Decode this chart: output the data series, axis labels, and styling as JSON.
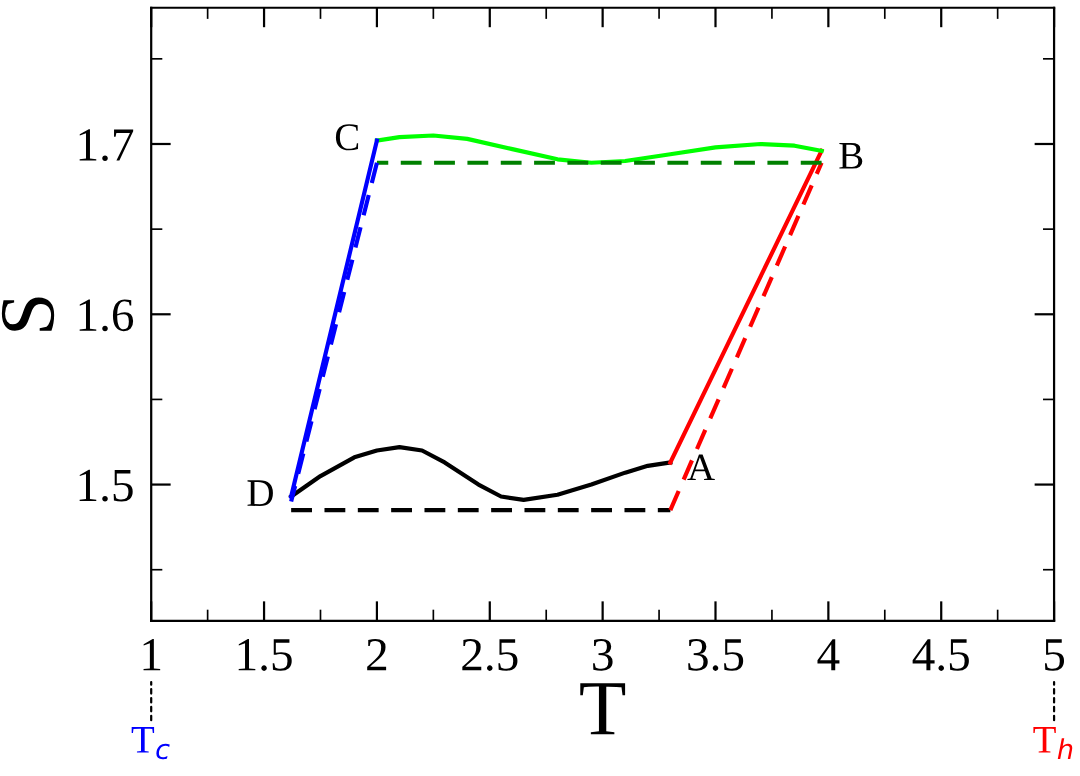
{
  "chart_data": {
    "type": "line",
    "xlabel": "T",
    "ylabel": "S",
    "xlim": [
      1,
      5
    ],
    "ylim": [
      1.42,
      1.78
    ],
    "xticks": [
      1,
      1.5,
      2,
      2.5,
      3,
      3.5,
      4,
      4.5,
      5
    ],
    "yticks": [
      1.5,
      1.6,
      1.7
    ],
    "grid": false,
    "legend": false,
    "marker": "none",
    "series": [
      {
        "color": "#000000",
        "line_style": "solid",
        "x": [
          1.62,
          1.75,
          1.9,
          2.0,
          2.1,
          2.2,
          2.3,
          2.45,
          2.55,
          2.65,
          2.8,
          2.95,
          3.1,
          3.2,
          3.3
        ],
        "values": [
          1.493,
          1.505,
          1.516,
          1.52,
          1.522,
          1.52,
          1.513,
          1.5,
          1.493,
          1.491,
          1.494,
          1.5,
          1.507,
          1.511,
          1.513
        ]
      },
      {
        "color": "#ff0000",
        "line_style": "solid",
        "x": [
          3.3,
          3.97
        ],
        "values": [
          1.513,
          1.696
        ]
      },
      {
        "color": "#00ff00",
        "line_style": "solid",
        "x": [
          2.0,
          2.1,
          2.25,
          2.4,
          2.6,
          2.8,
          2.95,
          3.1,
          3.3,
          3.5,
          3.7,
          3.85,
          3.97
        ],
        "values": [
          1.702,
          1.704,
          1.705,
          1.703,
          1.697,
          1.691,
          1.689,
          1.69,
          1.694,
          1.698,
          1.7,
          1.699,
          1.696
        ]
      },
      {
        "color": "#0000ff",
        "line_style": "solid",
        "x": [
          2.0,
          1.62
        ],
        "values": [
          1.702,
          1.493
        ]
      },
      {
        "color": "#000000",
        "line_style": "dashed",
        "x": [
          1.62,
          3.3
        ],
        "values": [
          1.485,
          1.485
        ]
      },
      {
        "color": "#ff0000",
        "line_style": "dashed",
        "x": [
          3.3,
          3.97
        ],
        "values": [
          1.485,
          1.689
        ]
      },
      {
        "color": "#008000",
        "line_style": "dashed",
        "x": [
          3.97,
          2.0
        ],
        "values": [
          1.689,
          1.689
        ]
      },
      {
        "color": "#0000ff",
        "line_style": "dashed",
        "x": [
          2.0,
          1.62
        ],
        "values": [
          1.689,
          1.49
        ]
      }
    ],
    "annotations": [
      {
        "text": "A",
        "x": 3.3,
        "y": 1.513
      },
      {
        "text": "B",
        "x": 3.97,
        "y": 1.696
      },
      {
        "text": "C",
        "x": 2.0,
        "y": 1.702
      },
      {
        "text": "D",
        "x": 1.62,
        "y": 1.493
      },
      "T$_{c}$",
      "T$_{h}$"
    ]
  }
}
